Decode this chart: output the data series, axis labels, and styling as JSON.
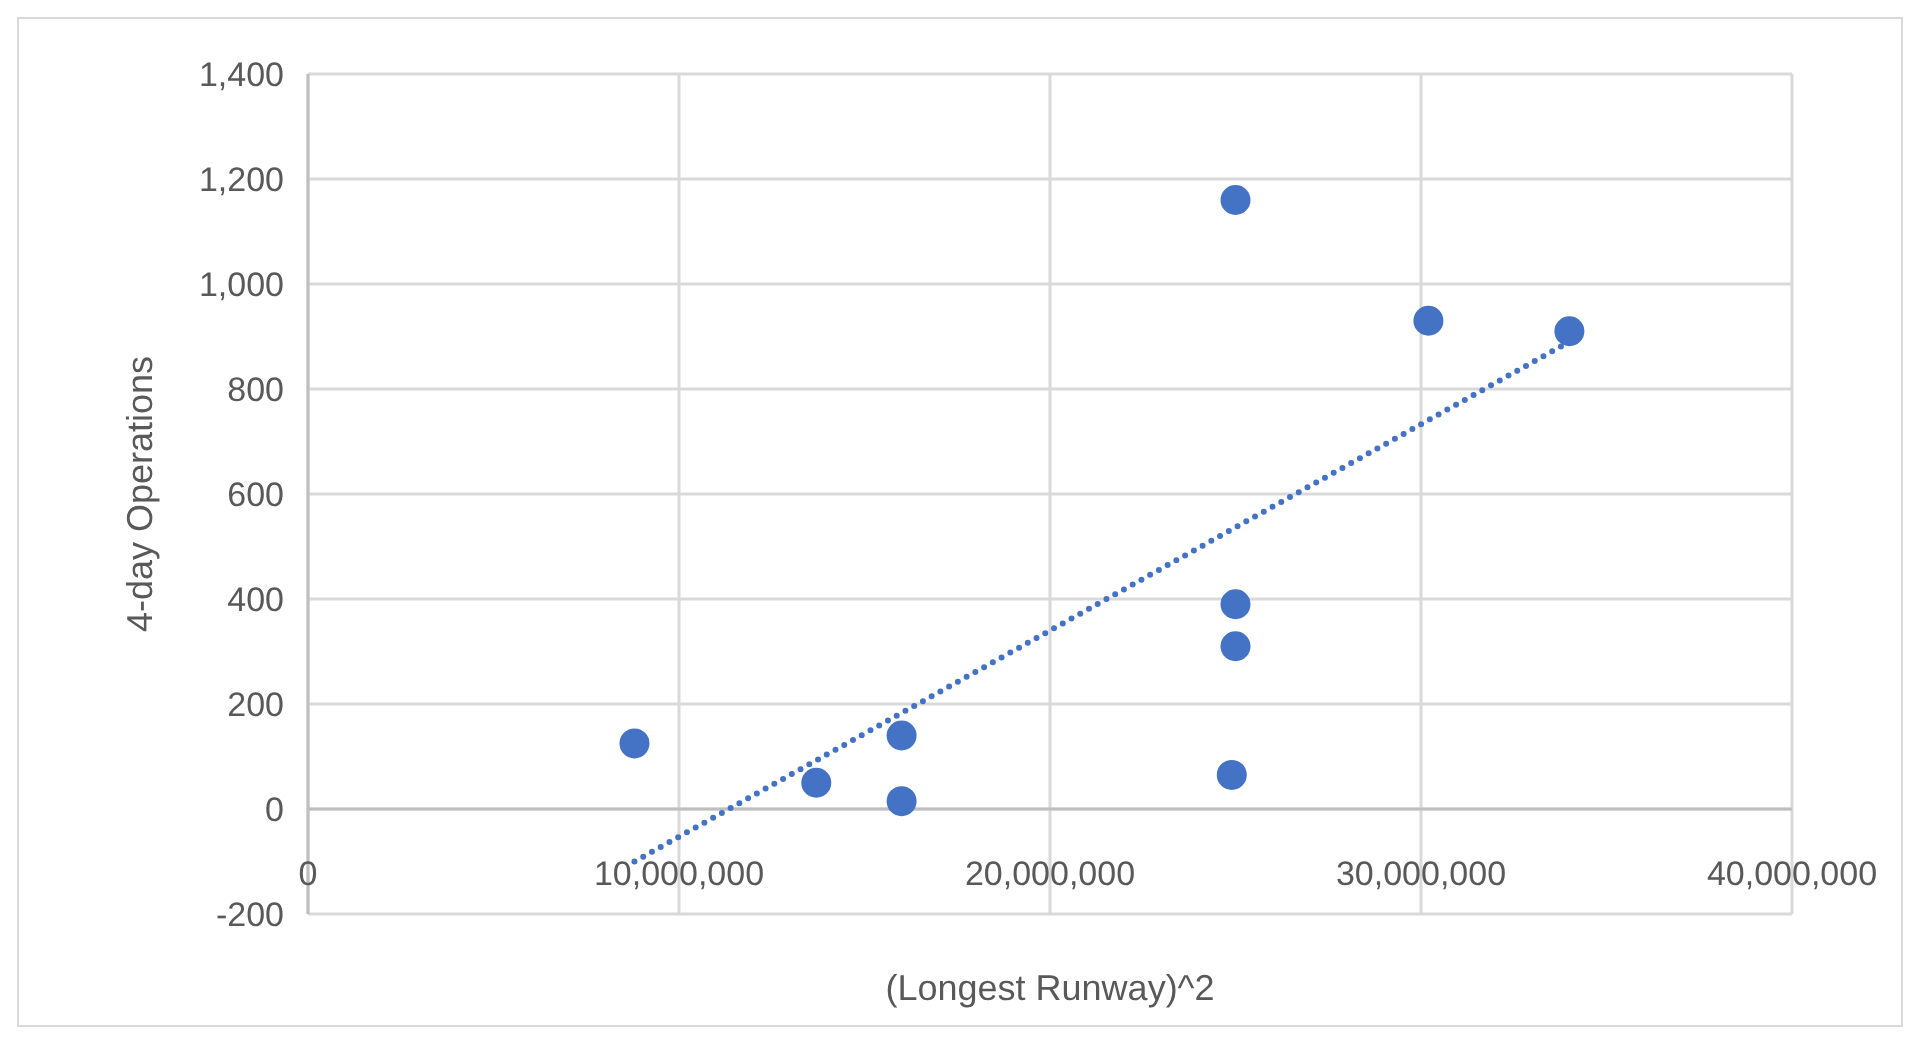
{
  "chart_data": {
    "type": "scatter",
    "xlabel": "(Longest Runway)^2",
    "ylabel": "4-day Operations",
    "xlim": [
      0,
      40000000
    ],
    "xticks": [
      {
        "value": 0,
        "label": "0"
      },
      {
        "value": 10000000,
        "label": "10,000,000"
      },
      {
        "value": 20000000,
        "label": "20,000,000"
      },
      {
        "value": 30000000,
        "label": "30,000,000"
      },
      {
        "value": 40000000,
        "label": "40,000,000"
      }
    ],
    "ylim": [
      -200,
      1400
    ],
    "yticks": [
      -200,
      0,
      200,
      400,
      600,
      800,
      {
        "value": 1000,
        "label": "1,000"
      },
      {
        "value": 1200,
        "label": "1,200"
      },
      {
        "value": 1400,
        "label": "1,400"
      }
    ],
    "grid": true,
    "series": [
      {
        "type": "scatter",
        "color": "#4472c4",
        "marker": "circle",
        "x": [
          8800000,
          13700000,
          16000000,
          16000000,
          24900000,
          25000000,
          25000000,
          25000000,
          30200000,
          34000000
        ],
        "values": [
          125,
          50,
          140,
          15,
          65,
          390,
          310,
          1160,
          930,
          910
        ]
      },
      {
        "type": "line",
        "color": "#4472c4",
        "line_style": "dotted",
        "x": [
          8800000,
          34000000
        ],
        "values": [
          -100,
          890
        ]
      }
    ]
  }
}
